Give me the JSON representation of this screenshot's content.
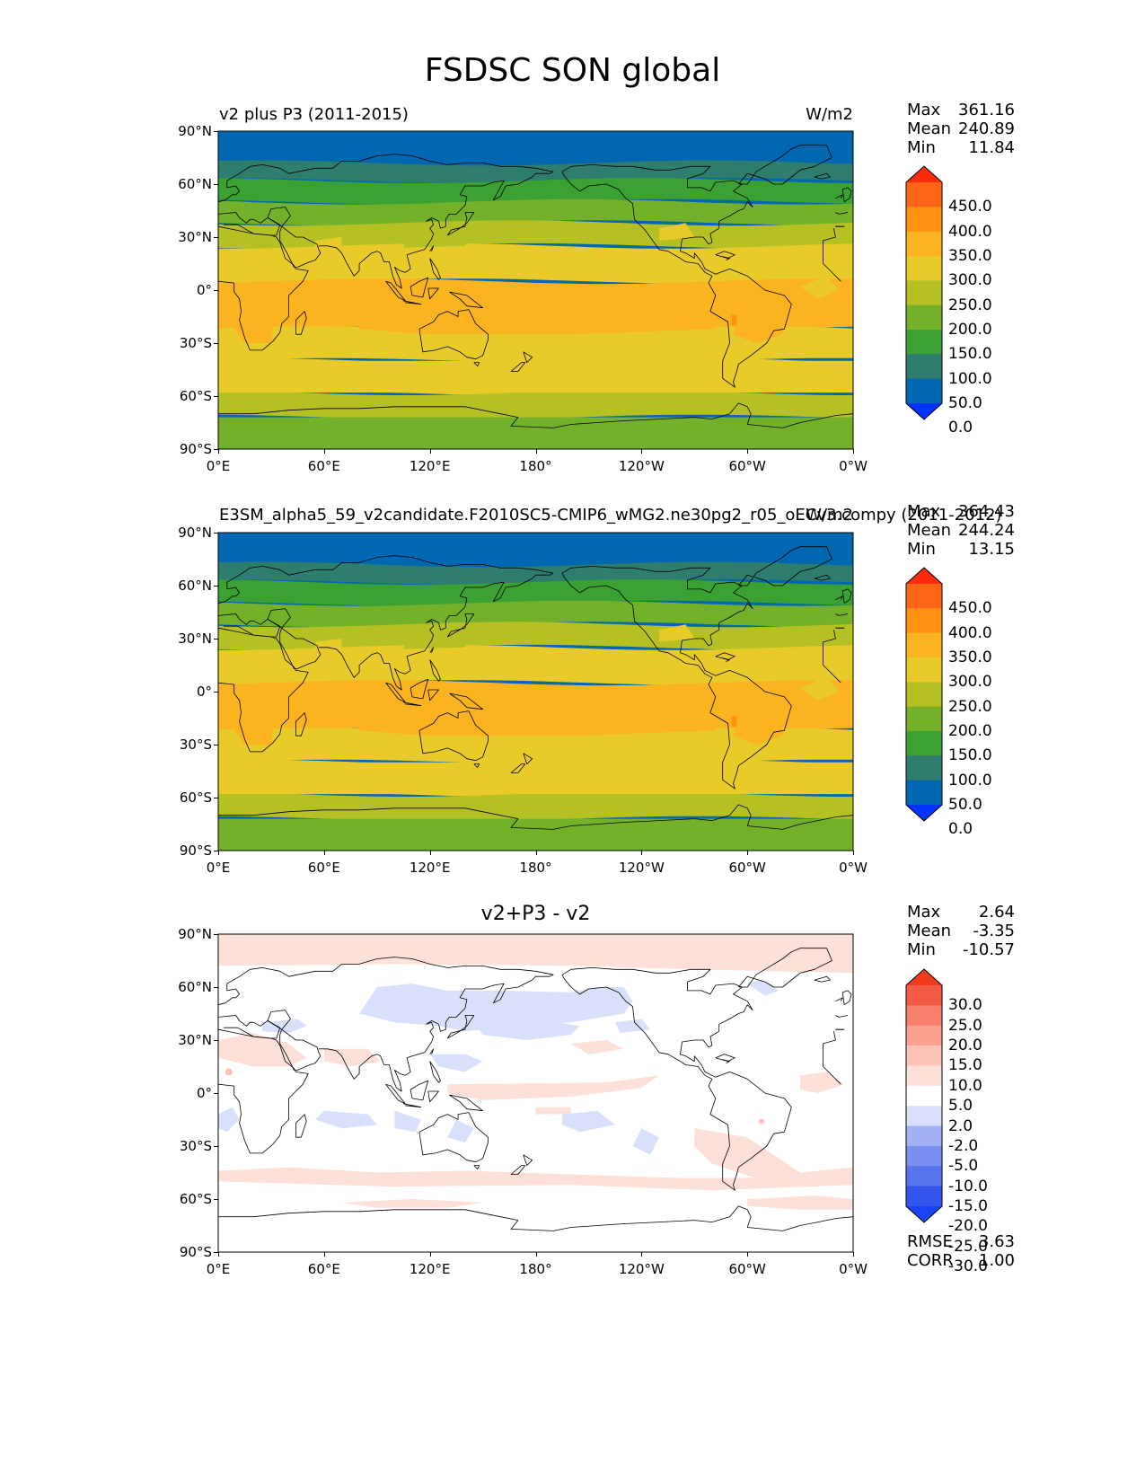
{
  "figure_title": "FSDSC SON global",
  "axes": {
    "lat_ticks": [
      "90°N",
      "60°N",
      "30°N",
      "0°",
      "30°S",
      "60°S",
      "90°S"
    ],
    "lon_ticks": [
      "0°E",
      "60°E",
      "120°E",
      "180°",
      "120°W",
      "60°W",
      "0°W"
    ]
  },
  "colors": {
    "main": [
      "#0033ff",
      "#0067b0",
      "#2e7d6e",
      "#3aa132",
      "#74b12a",
      "#b5c122",
      "#e8cb28",
      "#fbb420",
      "#ff9012",
      "#ff6516",
      "#ff2c0c"
    ],
    "diff": [
      "#1a44f2",
      "#3355ee",
      "#5873ee",
      "#7b8ff0",
      "#a3b2f4",
      "#d9e0fb",
      "#ffffff",
      "#fde0d8",
      "#fcc3b6",
      "#fca08f",
      "#f97f6d",
      "#f45a45",
      "#f23a1f"
    ]
  },
  "chart_data": [
    {
      "type": "heatmap",
      "id": "test",
      "title_left": "v2 plus P3 (2011-2015)",
      "title_right": "W/m2",
      "stats": [
        {
          "label": "Max",
          "value": "361.16"
        },
        {
          "label": "Mean",
          "value": "240.89"
        },
        {
          "label": "Min",
          "value": "11.84"
        }
      ],
      "colorbar_levels": [
        "450.0",
        "400.0",
        "350.0",
        "300.0",
        "250.0",
        "200.0",
        "150.0",
        "100.0",
        "50.0",
        "0.0"
      ],
      "latitude_profile_wm2": [
        {
          "lat": [
            90,
            72
          ],
          "value": 25
        },
        {
          "lat": [
            72,
            62
          ],
          "value": 75
        },
        {
          "lat": [
            62,
            50
          ],
          "value": 125
        },
        {
          "lat": [
            50,
            38
          ],
          "value": 175
        },
        {
          "lat": [
            38,
            25
          ],
          "value": 225
        },
        {
          "lat": [
            25,
            5
          ],
          "value": 275
        },
        {
          "lat": [
            5,
            -22
          ],
          "value": 325
        },
        {
          "lat": [
            -22,
            -40
          ],
          "value": 275
        },
        {
          "lat": [
            -40,
            -58
          ],
          "value": 275
        },
        {
          "lat": [
            -58,
            -72
          ],
          "value": 225
        },
        {
          "lat": [
            -72,
            -90
          ],
          "value": 175
        }
      ],
      "xlim": [
        0,
        360
      ],
      "ylim": [
        -90,
        90
      ]
    },
    {
      "type": "heatmap",
      "id": "reference",
      "title_left": "E3SM_alpha5_59_v2candidate.F2010SC5-CMIP6_wMG2.ne30pg2_r05_oECv3.compy (2011-2012)",
      "title_right": "W/m2",
      "stats": [
        {
          "label": "Max",
          "value": "364.43"
        },
        {
          "label": "Mean",
          "value": "244.24"
        },
        {
          "label": "Min",
          "value": "13.15"
        }
      ],
      "colorbar_levels": [
        "450.0",
        "400.0",
        "350.0",
        "300.0",
        "250.0",
        "200.0",
        "150.0",
        "100.0",
        "50.0",
        "0.0"
      ],
      "latitude_profile_wm2": [
        {
          "lat": [
            90,
            72
          ],
          "value": 25
        },
        {
          "lat": [
            72,
            62
          ],
          "value": 75
        },
        {
          "lat": [
            62,
            50
          ],
          "value": 125
        },
        {
          "lat": [
            50,
            38
          ],
          "value": 175
        },
        {
          "lat": [
            38,
            25
          ],
          "value": 225
        },
        {
          "lat": [
            25,
            5
          ],
          "value": 275
        },
        {
          "lat": [
            5,
            -22
          ],
          "value": 325
        },
        {
          "lat": [
            -22,
            -40
          ],
          "value": 275
        },
        {
          "lat": [
            -40,
            -58
          ],
          "value": 275
        },
        {
          "lat": [
            -58,
            -72
          ],
          "value": 225
        },
        {
          "lat": [
            -72,
            -90
          ],
          "value": 175
        }
      ],
      "xlim": [
        0,
        360
      ],
      "ylim": [
        -90,
        90
      ]
    },
    {
      "type": "heatmap",
      "id": "difference",
      "title_center": "v2+P3 - v2",
      "stats": [
        {
          "label": "Max",
          "value": "2.64"
        },
        {
          "label": "Mean",
          "value": "-3.35"
        },
        {
          "label": "Min",
          "value": "-10.57"
        }
      ],
      "colorbar_levels": [
        "30.0",
        "25.0",
        "20.0",
        "15.0",
        "10.0",
        "5.0",
        "2.0",
        "-2.0",
        "-5.0",
        "-10.0",
        "-15.0",
        "-20.0",
        "-25.0",
        "-30.0"
      ],
      "metrics": [
        {
          "label": "RMSE",
          "value": "3.63"
        },
        {
          "label": "CORR",
          "value": "1.00"
        }
      ],
      "dominant_value_wm2": -3.5,
      "xlim": [
        0,
        360
      ],
      "ylim": [
        -90,
        90
      ]
    }
  ]
}
